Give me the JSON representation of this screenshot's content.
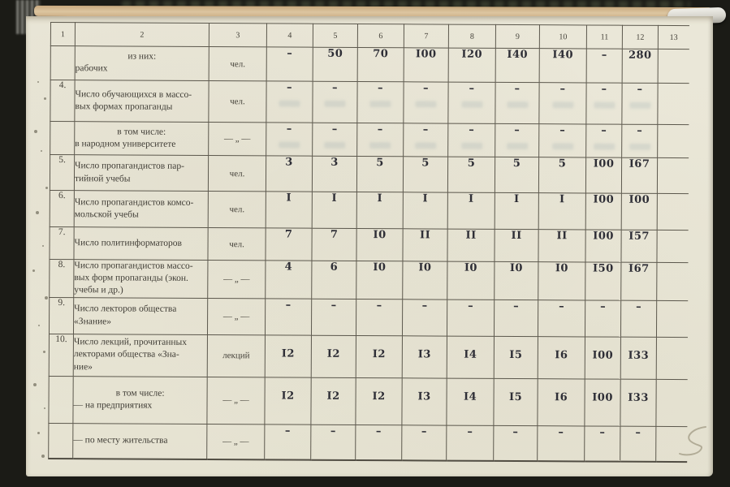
{
  "document": {
    "kind": "scanned archival table page (Russian)",
    "colors": {
      "paper": "#e9e6d7",
      "printed_ink": "#3f3c35",
      "typed_ink": "#2e2e36",
      "table_line": "#5c584d",
      "page_edge_strip": "#d5bc94",
      "background": "#1b1b16"
    },
    "table": {
      "header_cols": [
        "1",
        "2",
        "3",
        "4",
        "5",
        "6",
        "7",
        "8",
        "9",
        "10",
        "11",
        "12",
        "13"
      ],
      "rows": [
        {
          "num": "",
          "center": "из них:",
          "label": "рабочих",
          "unit": "чел.",
          "values": [
            "–",
            "50",
            "70",
            "I00",
            "I20",
            "I40",
            "I40",
            "–",
            "280"
          ]
        },
        {
          "num": "4.",
          "center": "",
          "label": "Число обучающихся в массо-\nвых формах пропаганды",
          "unit": "чел.",
          "values": [
            "–",
            "–",
            "–",
            "–",
            "–",
            "–",
            "–",
            "–",
            "–"
          ]
        },
        {
          "num": "",
          "center": "в том числе:",
          "label": "в народном университете",
          "unit": "— „ —",
          "values": [
            "–",
            "–",
            "–",
            "–",
            "–",
            "–",
            "–",
            "–",
            "–"
          ]
        },
        {
          "num": "5.",
          "center": "",
          "label": "Число пропагандистов пар-\nтийной учебы",
          "unit": "чел.",
          "values": [
            "3",
            "3",
            "5",
            "5",
            "5",
            "5",
            "5",
            "I00",
            "I67"
          ]
        },
        {
          "num": "6.",
          "center": "",
          "label": "Число пропагандистов комсо-\nмольской учебы",
          "unit": "чел.",
          "values": [
            "I",
            "I",
            "I",
            "I",
            "I",
            "I",
            "I",
            "I00",
            "I00"
          ]
        },
        {
          "num": "7.",
          "center": "",
          "label": "Число политинформаторов",
          "unit": "чел.",
          "values": [
            "7",
            "7",
            "I0",
            "II",
            "II",
            "II",
            "II",
            "I00",
            "I57"
          ]
        },
        {
          "num": "8.",
          "center": "",
          "label": "Число пропагандистов массо-\nвых форм пропаганды (экон.\nучебы и др.)",
          "unit": "— „ —",
          "values": [
            "4",
            "6",
            "I0",
            "I0",
            "I0",
            "I0",
            "I0",
            "I50",
            "I67"
          ]
        },
        {
          "num": "9.",
          "center": "",
          "label": "Число лекторов общества\n«Знание»",
          "unit": "— „ —",
          "values": [
            "–",
            "–",
            "–",
            "–",
            "–",
            "–",
            "–",
            "–",
            "–"
          ]
        },
        {
          "num": "10.",
          "center": "",
          "label": "Число лекций, прочитанных\nлекторами общества «Зна-\nние»",
          "unit": "лекций",
          "values": [
            "I2",
            "I2",
            "I2",
            "I3",
            "I4",
            "I5",
            "I6",
            "I00",
            "I33"
          ]
        },
        {
          "num": "",
          "center": "в том числе:",
          "label": "— на предприятиях",
          "unit": "— „ —",
          "values": [
            "I2",
            "I2",
            "I2",
            "I3",
            "I4",
            "I5",
            "I6",
            "I00",
            "I33"
          ]
        },
        {
          "num": "",
          "center": "",
          "label": "— по месту жительства",
          "unit": "— „ —",
          "values": [
            "–",
            "–",
            "–",
            "–",
            "–",
            "–",
            "–",
            "–",
            "–"
          ]
        }
      ]
    }
  }
}
